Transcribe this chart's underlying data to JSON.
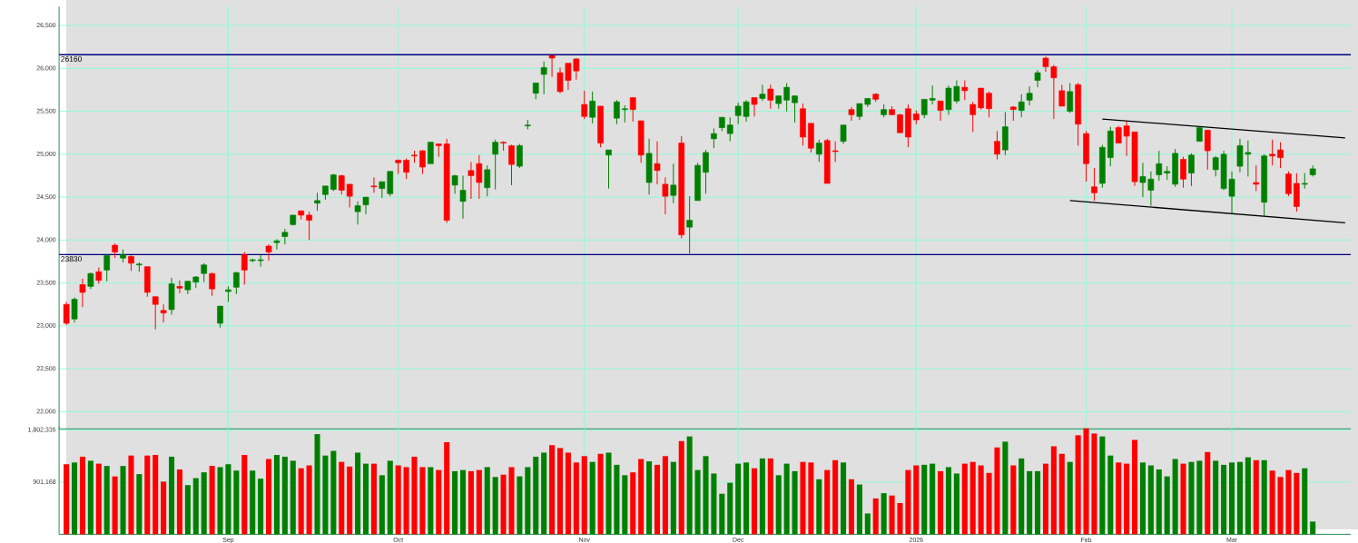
{
  "chart_data": [
    {
      "type": "candlestick",
      "categories": [
        null,
        null,
        null,
        null,
        null,
        null,
        null,
        null,
        null,
        null,
        null,
        null,
        null,
        null,
        null,
        null,
        null,
        null,
        null,
        null,
        null,
        null,
        null,
        null,
        null,
        null,
        null,
        null,
        null,
        null,
        null,
        null,
        null,
        null,
        null,
        null,
        null,
        null,
        null,
        null,
        null,
        null,
        null,
        null,
        null,
        null,
        null,
        null,
        null,
        null,
        null,
        null,
        null,
        null,
        null,
        null,
        null,
        null,
        null,
        null,
        null,
        null,
        null,
        null,
        null,
        null,
        null,
        null,
        null,
        null,
        null,
        null,
        null,
        null,
        null,
        null,
        null,
        null,
        null,
        null,
        null,
        null,
        null,
        null,
        null,
        null,
        null,
        null,
        null,
        null,
        null,
        null,
        null,
        null,
        null,
        null,
        null,
        null,
        null,
        null,
        null,
        null,
        null,
        null,
        null,
        null,
        null,
        null,
        null,
        null,
        null,
        null,
        null,
        null,
        null,
        null,
        null,
        null,
        null,
        null,
        null,
        null,
        null,
        null,
        null,
        null,
        null,
        null,
        null,
        null,
        null,
        null,
        null,
        null,
        null,
        null,
        null,
        null,
        null,
        null,
        null,
        null,
        null,
        null,
        null,
        null,
        null,
        null,
        null,
        null,
        null,
        null,
        null,
        null,
        null,
        null,
        null,
        null,
        null
      ],
      "ohlc": [
        [
          23250,
          23280,
          23010,
          23030
        ],
        [
          23080,
          23330,
          23040,
          23310
        ],
        [
          23480,
          23550,
          23220,
          23390
        ],
        [
          23460,
          23620,
          23430,
          23610
        ],
        [
          23630,
          23680,
          23490,
          23530
        ],
        [
          23650,
          23830,
          23520,
          23820
        ],
        [
          23940,
          23960,
          23790,
          23860
        ],
        [
          23790,
          23890,
          23740,
          23830
        ],
        [
          23810,
          23820,
          23640,
          23730
        ],
        [
          23710,
          23740,
          23630,
          23720
        ],
        [
          23690,
          23690,
          23340,
          23390
        ],
        [
          23340,
          23340,
          22960,
          23250
        ],
        [
          23180,
          23250,
          23040,
          23150
        ],
        [
          23190,
          23560,
          23130,
          23490
        ],
        [
          23460,
          23530,
          23380,
          23440
        ],
        [
          23420,
          23520,
          23370,
          23520
        ],
        [
          23510,
          23580,
          23440,
          23570
        ],
        [
          23610,
          23730,
          23510,
          23710
        ],
        [
          23610,
          23620,
          23350,
          23430
        ],
        [
          23030,
          23230,
          22980,
          23230
        ],
        [
          23400,
          23460,
          23280,
          23420
        ],
        [
          23450,
          23630,
          23370,
          23620
        ],
        [
          23830,
          23860,
          23480,
          23650
        ],
        [
          23760,
          23780,
          23740,
          23770
        ],
        [
          23760,
          23830,
          23690,
          23770
        ],
        [
          23930,
          23950,
          23760,
          23860
        ],
        [
          23970,
          24010,
          23890,
          23990
        ],
        [
          24040,
          24130,
          23950,
          24090
        ],
        [
          24180,
          24290,
          24170,
          24290
        ],
        [
          24340,
          24340,
          24240,
          24290
        ],
        [
          24290,
          24330,
          24000,
          24230
        ],
        [
          24430,
          24550,
          24340,
          24460
        ],
        [
          24530,
          24630,
          24470,
          24630
        ],
        [
          24590,
          24770,
          24570,
          24760
        ],
        [
          24750,
          24760,
          24530,
          24580
        ],
        [
          24650,
          24650,
          24380,
          24510
        ],
        [
          24330,
          24450,
          24180,
          24400
        ],
        [
          24410,
          24500,
          24300,
          24500
        ],
        [
          24630,
          24730,
          24550,
          24620
        ],
        [
          24600,
          24680,
          24490,
          24680
        ],
        [
          24540,
          24800,
          24510,
          24800
        ],
        [
          24930,
          24940,
          24770,
          24900
        ],
        [
          24930,
          24950,
          24710,
          24790
        ],
        [
          24990,
          25040,
          24900,
          24980
        ],
        [
          25040,
          25050,
          24770,
          24850
        ],
        [
          24890,
          25140,
          24890,
          25140
        ],
        [
          25120,
          25120,
          24970,
          25100
        ],
        [
          25120,
          25180,
          24200,
          24230
        ],
        [
          24640,
          24760,
          24540,
          24750
        ],
        [
          24450,
          24750,
          24250,
          24580
        ],
        [
          24810,
          24910,
          24480,
          24750
        ],
        [
          24890,
          24990,
          24480,
          24670
        ],
        [
          24610,
          24870,
          24510,
          24820
        ],
        [
          25000,
          25170,
          24590,
          25140
        ],
        [
          25140,
          25150,
          25040,
          25130
        ],
        [
          25100,
          25110,
          24640,
          24880
        ],
        [
          24860,
          25120,
          24840,
          25100
        ],
        [
          25330,
          25400,
          25290,
          25340
        ],
        [
          25710,
          25830,
          25640,
          25830
        ],
        [
          25930,
          26080,
          25700,
          26010
        ],
        [
          26150,
          26150,
          25900,
          26120
        ],
        [
          25950,
          26010,
          25710,
          25730
        ],
        [
          26060,
          26060,
          25750,
          25860
        ],
        [
          26110,
          26120,
          25870,
          25970
        ],
        [
          25580,
          25740,
          25410,
          25440
        ],
        [
          25430,
          25730,
          25360,
          25620
        ],
        [
          25560,
          25560,
          25080,
          25130
        ],
        [
          24990,
          25050,
          24600,
          25050
        ],
        [
          25420,
          25630,
          25350,
          25610
        ],
        [
          25520,
          25570,
          25370,
          25530
        ],
        [
          25660,
          25660,
          25380,
          25520
        ],
        [
          25390,
          25390,
          24900,
          24990
        ],
        [
          24670,
          25180,
          24530,
          25010
        ],
        [
          24890,
          25150,
          24650,
          24810
        ],
        [
          24650,
          24730,
          24300,
          24510
        ],
        [
          24520,
          24890,
          24430,
          24640
        ],
        [
          25130,
          25210,
          24020,
          24060
        ],
        [
          24150,
          24510,
          23840,
          24230
        ],
        [
          24460,
          24900,
          24460,
          24870
        ],
        [
          24790,
          25050,
          24540,
          25020
        ],
        [
          25180,
          25300,
          25070,
          25240
        ],
        [
          25310,
          25430,
          25270,
          25430
        ],
        [
          25240,
          25430,
          25150,
          25340
        ],
        [
          25450,
          25600,
          25350,
          25560
        ],
        [
          25440,
          25630,
          25380,
          25610
        ],
        [
          25660,
          25660,
          25440,
          25580
        ],
        [
          25650,
          25810,
          25620,
          25700
        ],
        [
          25760,
          25810,
          25530,
          25630
        ],
        [
          25590,
          25680,
          25530,
          25680
        ],
        [
          25630,
          25830,
          25500,
          25780
        ],
        [
          25600,
          25680,
          25370,
          25680
        ],
        [
          25530,
          25590,
          25100,
          25200
        ],
        [
          25360,
          25360,
          25020,
          25070
        ],
        [
          25000,
          25170,
          24910,
          25130
        ],
        [
          25160,
          25180,
          24660,
          24660
        ],
        [
          25040,
          25150,
          24910,
          25030
        ],
        [
          25150,
          25340,
          25120,
          25340
        ],
        [
          25520,
          25550,
          25390,
          25460
        ],
        [
          25440,
          25590,
          25400,
          25590
        ],
        [
          25580,
          25650,
          25550,
          25650
        ],
        [
          25700,
          25710,
          25610,
          25640
        ],
        [
          25460,
          25580,
          25430,
          25520
        ],
        [
          25520,
          25560,
          25460,
          25460
        ],
        [
          25460,
          25470,
          25250,
          25250
        ],
        [
          25530,
          25580,
          25080,
          25200
        ],
        [
          25470,
          25510,
          25350,
          25400
        ],
        [
          25460,
          25640,
          25420,
          25640
        ],
        [
          25630,
          25800,
          25580,
          25650
        ],
        [
          25620,
          25620,
          25390,
          25510
        ],
        [
          25520,
          25800,
          25460,
          25770
        ],
        [
          25620,
          25860,
          25590,
          25790
        ],
        [
          25780,
          25860,
          25630,
          25740
        ],
        [
          25580,
          25610,
          25260,
          25460
        ],
        [
          25770,
          25770,
          25520,
          25540
        ],
        [
          25710,
          25730,
          25430,
          25530
        ],
        [
          25150,
          25270,
          24940,
          25000
        ],
        [
          25050,
          25490,
          24990,
          25320
        ],
        [
          25550,
          25560,
          25390,
          25520
        ],
        [
          25510,
          25700,
          25430,
          25610
        ],
        [
          25630,
          25790,
          25570,
          25710
        ],
        [
          25860,
          25980,
          25780,
          25950
        ],
        [
          26120,
          26140,
          25960,
          26020
        ],
        [
          26020,
          26040,
          25410,
          25890
        ],
        [
          25740,
          25810,
          25560,
          25560
        ],
        [
          25500,
          25830,
          25480,
          25730
        ],
        [
          25810,
          25830,
          25100,
          25350
        ],
        [
          25240,
          25270,
          24680,
          24890
        ],
        [
          24620,
          24840,
          24460,
          24550
        ],
        [
          24660,
          25110,
          24610,
          25080
        ],
        [
          24960,
          25320,
          24860,
          25270
        ],
        [
          25310,
          25330,
          25130,
          25130
        ],
        [
          25330,
          25380,
          24980,
          25210
        ],
        [
          25260,
          25260,
          24630,
          24680
        ],
        [
          24670,
          24900,
          24500,
          24740
        ],
        [
          24580,
          24800,
          24400,
          24710
        ],
        [
          24760,
          25040,
          24690,
          24890
        ],
        [
          24780,
          24860,
          24700,
          24800
        ],
        [
          24650,
          25060,
          24620,
          25010
        ],
        [
          24940,
          24970,
          24610,
          24710
        ],
        [
          24780,
          25010,
          24630,
          24990
        ],
        [
          25150,
          25320,
          25150,
          25310
        ],
        [
          25280,
          25280,
          24820,
          25040
        ],
        [
          24820,
          24980,
          24740,
          24960
        ],
        [
          24600,
          25040,
          24580,
          25000
        ],
        [
          24510,
          24800,
          24310,
          24710
        ],
        [
          24860,
          25180,
          24790,
          25100
        ],
        [
          25000,
          25160,
          24740,
          25020
        ],
        [
          24670,
          24870,
          24570,
          24650
        ],
        [
          24440,
          25000,
          24280,
          24980
        ],
        [
          25000,
          25170,
          24870,
          24980
        ],
        [
          25050,
          25140,
          24840,
          24960
        ],
        [
          24770,
          24800,
          24510,
          24540
        ],
        [
          24660,
          24780,
          24330,
          24390
        ],
        [
          24650,
          24780,
          24600,
          24660
        ],
        [
          24760,
          24870,
          24740,
          24830
        ],
        null,
        null,
        null,
        null
      ],
      "colors": [
        "#ff0000",
        "#008000",
        "#ff0000",
        "#008000",
        "#ff0000",
        "#008000",
        "#ff0000",
        "#008000",
        "#ff0000",
        "#008000",
        "#ff0000",
        "#ff0000",
        "#ff0000",
        "#008000",
        "#ff0000",
        "#008000",
        "#008000",
        "#008000",
        "#ff0000",
        "#008000",
        "#008000",
        "#008000",
        "#ff0000",
        "#008000",
        "#008000",
        "#ff0000",
        "#008000",
        "#008000",
        "#008000",
        "#ff0000",
        "#ff0000",
        "#008000",
        "#008000",
        "#008000",
        "#ff0000",
        "#ff0000",
        "#008000",
        "#008000",
        "#ff0000",
        "#008000",
        "#008000",
        "#ff0000",
        "#ff0000",
        "#ff0000",
        "#ff0000",
        "#008000",
        "#ff0000",
        "#ff0000",
        "#008000",
        "#008000",
        "#ff0000",
        "#ff0000",
        "#008000",
        "#008000",
        "#ff0000",
        "#ff0000",
        "#008000",
        "#008000",
        "#008000",
        "#008000",
        "#ff0000",
        "#ff0000",
        "#ff0000",
        "#ff0000",
        "#ff0000",
        "#008000",
        "#ff0000",
        "#008000",
        "#008000",
        "#008000",
        "#ff0000",
        "#ff0000",
        "#008000",
        "#ff0000",
        "#ff0000",
        "#008000",
        "#ff0000",
        "#008000",
        "#008000",
        "#008000",
        "#008000",
        "#008000",
        "#008000",
        "#008000",
        "#008000",
        "#ff0000",
        "#008000",
        "#ff0000",
        "#008000",
        "#008000",
        "#008000",
        "#ff0000",
        "#ff0000",
        "#008000",
        "#ff0000",
        "#ff0000",
        "#008000",
        "#ff0000",
        "#008000",
        "#008000",
        "#ff0000",
        "#008000",
        "#ff0000",
        "#ff0000",
        "#ff0000",
        "#ff0000",
        "#008000",
        "#008000",
        "#ff0000",
        "#008000",
        "#008000",
        "#ff0000",
        "#ff0000",
        "#ff0000",
        "#ff0000",
        "#ff0000",
        "#008000",
        "#ff0000",
        "#008000",
        "#008000",
        "#008000",
        "#ff0000",
        "#ff0000",
        "#ff0000",
        "#008000",
        "#ff0000",
        "#ff0000",
        "#ff0000",
        "#008000",
        "#008000",
        "#ff0000",
        "#ff0000",
        "#ff0000",
        "#008000",
        "#008000",
        "#008000",
        "#008000",
        "#008000",
        "#ff0000",
        "#008000",
        "#008000",
        "#ff0000",
        "#008000",
        "#008000",
        "#008000",
        "#008000",
        "#008000",
        "#ff0000",
        "#008000",
        "#ff0000",
        "#ff0000",
        "#ff0000",
        "#ff0000",
        "#008000",
        "#008000",
        null,
        null,
        null,
        null
      ],
      "ylim": [
        21800,
        26720
      ],
      "yticks": [
        {
          "value": 22000,
          "label": "22,000"
        },
        {
          "value": 22500,
          "label": "22,500"
        },
        {
          "value": 23000,
          "label": "23,000"
        },
        {
          "value": 23500,
          "label": "23,500"
        },
        {
          "value": 24000,
          "label": "24,000"
        },
        {
          "value": 24500,
          "label": "24,500"
        },
        {
          "value": 25000,
          "label": "25,000"
        },
        {
          "value": 25500,
          "label": "25,500"
        },
        {
          "value": 26000,
          "label": "26,000"
        },
        {
          "value": 26500,
          "label": "26,500"
        }
      ],
      "grid": true,
      "tick_labels": "y",
      "ref_lines": [
        {
          "axis": "y",
          "value": 26160,
          "label": "26160",
          "color": "#000080"
        },
        {
          "axis": "y",
          "value": 23830,
          "label": "23830",
          "color": "#000080"
        }
      ],
      "series": [
        {
          "type": "line",
          "values": [
            null,
            null,
            null,
            null,
            null,
            null,
            null,
            null,
            null,
            null,
            null,
            null,
            null,
            null,
            null,
            null,
            null,
            null,
            null,
            null,
            null,
            null,
            null,
            null,
            null,
            null,
            null,
            null,
            null,
            null,
            null,
            null,
            null,
            null,
            null,
            null,
            null,
            null,
            null,
            null,
            null,
            null,
            null,
            null,
            null,
            null,
            null,
            null,
            null,
            null,
            null,
            null,
            null,
            null,
            null,
            null,
            null,
            null,
            null,
            null,
            null,
            null,
            null,
            null,
            null,
            null,
            null,
            null,
            null,
            null,
            null,
            null,
            null,
            null,
            null,
            null,
            null,
            null,
            null,
            null,
            null,
            null,
            null,
            null,
            null,
            null,
            null,
            null,
            null,
            null,
            null,
            null,
            null,
            null,
            null,
            null,
            null,
            null,
            null,
            null,
            null,
            null,
            null,
            null,
            null,
            null,
            null,
            null,
            null,
            null,
            null,
            null,
            null,
            null,
            null,
            null,
            null,
            null,
            null,
            null,
            null,
            null,
            null,
            null,
            null,
            null,
            null,
            null,
            25410,
            null,
            null,
            null,
            null,
            null,
            null,
            null,
            null,
            null,
            null,
            null,
            null,
            null,
            null,
            null,
            null,
            null,
            null,
            null,
            null,
            null,
            null,
            null,
            null,
            null,
            null,
            null,
            null,
            null,
            25190
          ],
          "color": "#000000"
        },
        {
          "type": "line",
          "values": [
            null,
            null,
            null,
            null,
            null,
            null,
            null,
            null,
            null,
            null,
            null,
            null,
            null,
            null,
            null,
            null,
            null,
            null,
            null,
            null,
            null,
            null,
            null,
            null,
            null,
            null,
            null,
            null,
            null,
            null,
            null,
            null,
            null,
            null,
            null,
            null,
            null,
            null,
            null,
            null,
            null,
            null,
            null,
            null,
            null,
            null,
            null,
            null,
            null,
            null,
            null,
            null,
            null,
            null,
            null,
            null,
            null,
            null,
            null,
            null,
            null,
            null,
            null,
            null,
            null,
            null,
            null,
            null,
            null,
            null,
            null,
            null,
            null,
            null,
            null,
            null,
            null,
            null,
            null,
            null,
            null,
            null,
            null,
            null,
            null,
            null,
            null,
            null,
            null,
            null,
            null,
            null,
            null,
            null,
            null,
            null,
            null,
            null,
            null,
            null,
            null,
            null,
            null,
            null,
            null,
            null,
            null,
            null,
            null,
            null,
            null,
            null,
            null,
            null,
            null,
            null,
            null,
            null,
            null,
            null,
            null,
            null,
            null,
            null,
            24460,
            null,
            null,
            null,
            null,
            null,
            null,
            null,
            null,
            null,
            null,
            null,
            null,
            null,
            null,
            null,
            null,
            null,
            null,
            null,
            null,
            null,
            null,
            null,
            null,
            null,
            null,
            null,
            null,
            null,
            null,
            null,
            null,
            null,
            24200
          ],
          "color": "#000000"
        }
      ]
    },
    {
      "type": "bar",
      "categories": [
        null,
        null,
        null,
        null,
        null,
        null,
        null,
        null,
        null,
        null,
        null,
        null,
        null,
        null,
        null,
        null,
        null,
        null,
        null,
        null,
        "Sep",
        null,
        null,
        null,
        null,
        null,
        null,
        null,
        null,
        null,
        null,
        null,
        null,
        null,
        null,
        null,
        null,
        null,
        null,
        null,
        null,
        "Oct",
        null,
        null,
        null,
        null,
        null,
        null,
        null,
        null,
        null,
        null,
        null,
        null,
        null,
        null,
        null,
        null,
        null,
        null,
        null,
        null,
        null,
        null,
        "Nov",
        null,
        null,
        null,
        null,
        null,
        null,
        null,
        null,
        null,
        null,
        null,
        null,
        null,
        null,
        null,
        null,
        null,
        null,
        "Dec",
        null,
        null,
        null,
        null,
        null,
        null,
        null,
        null,
        null,
        null,
        null,
        null,
        null,
        null,
        null,
        null,
        null,
        null,
        null,
        null,
        null,
        "2026",
        null,
        null,
        null,
        null,
        null,
        null,
        null,
        null,
        null,
        null,
        null,
        null,
        null,
        null,
        null,
        null,
        null,
        null,
        null,
        null,
        "Feb",
        null,
        null,
        null,
        null,
        null,
        null,
        null,
        null,
        null,
        null,
        null,
        null,
        null,
        null,
        null,
        null,
        null,
        "Mar",
        null,
        null,
        null,
        null,
        null,
        null,
        null,
        null,
        null,
        null,
        null,
        null,
        null,
        null
      ],
      "values": [
        1210000,
        1240000,
        1340000,
        1270000,
        1220000,
        1180000,
        1000000,
        1180000,
        1360000,
        1040000,
        1360000,
        1370000,
        910000,
        1340000,
        1120000,
        850000,
        970000,
        1070000,
        1180000,
        1160000,
        1210000,
        1100000,
        1370000,
        1100000,
        960000,
        1300000,
        1370000,
        1340000,
        1270000,
        1140000,
        1190000,
        1730000,
        1360000,
        1440000,
        1250000,
        1170000,
        1410000,
        1220000,
        1220000,
        1020000,
        1270000,
        1190000,
        1160000,
        1340000,
        1160000,
        1160000,
        1110000,
        1590000,
        1090000,
        1110000,
        1090000,
        1110000,
        1160000,
        990000,
        1030000,
        1160000,
        1000000,
        1160000,
        1340000,
        1410000,
        1540000,
        1490000,
        1410000,
        1240000,
        1350000,
        1250000,
        1390000,
        1410000,
        1200000,
        1020000,
        1070000,
        1300000,
        1260000,
        1200000,
        1350000,
        1250000,
        1610000,
        1690000,
        1110000,
        1350000,
        1050000,
        700000,
        890000,
        1220000,
        1240000,
        1140000,
        1310000,
        1310000,
        1020000,
        1220000,
        1090000,
        1250000,
        1240000,
        950000,
        1110000,
        1280000,
        1240000,
        950000,
        860000,
        360000,
        620000,
        710000,
        670000,
        540000,
        1110000,
        1190000,
        1200000,
        1220000,
        1090000,
        1160000,
        1050000,
        1220000,
        1250000,
        1190000,
        1060000,
        1500000,
        1600000,
        1190000,
        1310000,
        1090000,
        1090000,
        1220000,
        1520000,
        1390000,
        1250000,
        1710000,
        1830000,
        1740000,
        1690000,
        1360000,
        1240000,
        1220000,
        1630000,
        1240000,
        1190000,
        1120000,
        1000000,
        1300000,
        1220000,
        1250000,
        1270000,
        1420000,
        1270000,
        1200000,
        1240000,
        1250000,
        1330000,
        1280000,
        1280000,
        1100000,
        990000,
        1110000,
        1060000,
        1140000,
        220000,
        null,
        null,
        null,
        null
      ],
      "colors": [
        "#ff0000",
        "#008000",
        "#ff0000",
        "#008000",
        "#ff0000",
        "#008000",
        "#ff0000",
        "#008000",
        "#ff0000",
        "#008000",
        "#ff0000",
        "#ff0000",
        "#ff0000",
        "#008000",
        "#ff0000",
        "#008000",
        "#008000",
        "#008000",
        "#ff0000",
        "#008000",
        "#008000",
        "#008000",
        "#ff0000",
        "#008000",
        "#008000",
        "#ff0000",
        "#008000",
        "#008000",
        "#008000",
        "#ff0000",
        "#ff0000",
        "#008000",
        "#008000",
        "#008000",
        "#ff0000",
        "#ff0000",
        "#008000",
        "#008000",
        "#ff0000",
        "#008000",
        "#008000",
        "#ff0000",
        "#ff0000",
        "#ff0000",
        "#ff0000",
        "#008000",
        "#ff0000",
        "#ff0000",
        "#008000",
        "#008000",
        "#ff0000",
        "#ff0000",
        "#008000",
        "#008000",
        "#ff0000",
        "#ff0000",
        "#008000",
        "#008000",
        "#008000",
        "#008000",
        "#ff0000",
        "#ff0000",
        "#ff0000",
        "#ff0000",
        "#ff0000",
        "#008000",
        "#ff0000",
        "#008000",
        "#008000",
        "#008000",
        "#ff0000",
        "#ff0000",
        "#008000",
        "#ff0000",
        "#ff0000",
        "#008000",
        "#ff0000",
        "#008000",
        "#008000",
        "#008000",
        "#008000",
        "#008000",
        "#008000",
        "#008000",
        "#008000",
        "#ff0000",
        "#008000",
        "#ff0000",
        "#008000",
        "#008000",
        "#008000",
        "#ff0000",
        "#ff0000",
        "#008000",
        "#ff0000",
        "#ff0000",
        "#008000",
        "#ff0000",
        "#008000",
        "#008000",
        "#ff0000",
        "#008000",
        "#ff0000",
        "#ff0000",
        "#ff0000",
        "#ff0000",
        "#008000",
        "#008000",
        "#ff0000",
        "#008000",
        "#008000",
        "#ff0000",
        "#ff0000",
        "#ff0000",
        "#ff0000",
        "#ff0000",
        "#008000",
        "#ff0000",
        "#008000",
        "#008000",
        "#008000",
        "#ff0000",
        "#ff0000",
        "#ff0000",
        "#008000",
        "#ff0000",
        "#ff0000",
        "#ff0000",
        "#008000",
        "#008000",
        "#ff0000",
        "#ff0000",
        "#ff0000",
        "#008000",
        "#008000",
        "#008000",
        "#008000",
        "#008000",
        "#ff0000",
        "#008000",
        "#008000",
        "#ff0000",
        "#008000",
        "#008000",
        "#008000",
        "#008000",
        "#008000",
        "#ff0000",
        "#008000",
        "#ff0000",
        "#ff0000",
        "#ff0000",
        "#ff0000",
        "#008000",
        "#008000",
        null,
        null,
        null,
        null
      ],
      "ylim": [
        0,
        1850000
      ],
      "yticks": [
        {
          "value": 901168,
          "label": "901,168"
        },
        {
          "value": 1802335,
          "label": "1,802,335"
        }
      ],
      "grid": true
    }
  ]
}
